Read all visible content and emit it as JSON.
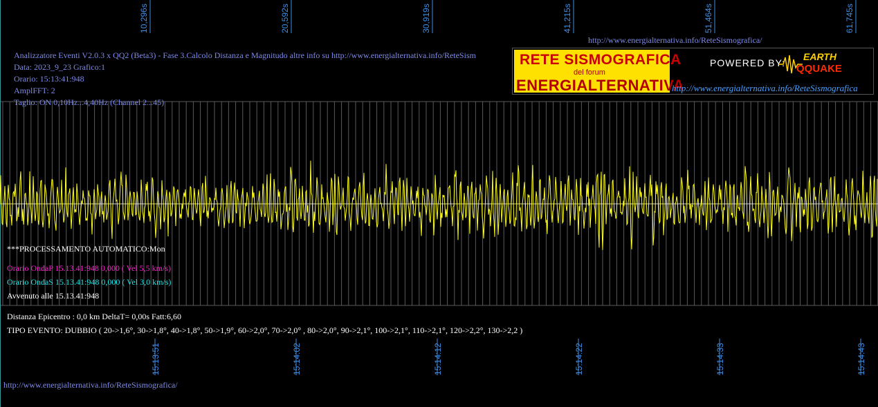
{
  "top_ticks": [
    "10,296s",
    "20,592s",
    "30,919s",
    "41,215s",
    "51,464s",
    "61,745s"
  ],
  "bottom_ticks": [
    "15:13:51",
    "15:14:02",
    "15:14:12",
    "15:14:22",
    "15:14:33",
    "15:14:43"
  ],
  "top_url": "http://www.energialternativa.info/ReteSismografica/",
  "header": {
    "line1": "Analizzatore Eventi V2.0.3 x QQ2 (Beta3) - Fase 3.Calcolo Distanza e Magnitudo altre info su http://www.energialternativa.info/ReteSism",
    "line2": "Data: 2023_9_23 Grafico:1",
    "line3": "Orario: 15:13:41:948",
    "line4": "AmplFFT: 2",
    "line5": "Taglio: ON 0,10Hz...4,40Hz       (Channel 2...45)"
  },
  "logo": {
    "rete": "RETE SISMOGRAFICA",
    "del_forum": "del forum",
    "energia": "ENERGIALTERNATIVA",
    "powered": "POWERED BY:",
    "earth": "EARTH",
    "qquake": "QQUAKE",
    "url": "http://www.energialternativa.info/ReteSismografica"
  },
  "status": {
    "processing": "***PROCESSAMENTO AUTOMATICO:Mon",
    "onda_p": "Orario OndaP 15.13.41:948  0,000 ( Vel 5,5 km/s)",
    "onda_s": "Orario OndaS 15.13.41:948  0,000 ( Vel 3,0 km/s)",
    "avvenuto": "Avvenuto alle 15.13.41:948",
    "distanza": "Distanza Epicentro : 0,0 km DeltaT= 0,00s  Fatt:6,60",
    "tipo": "TIPO EVENTO: DUBBIO ( 20->1,6°, 30->1,8°, 40->1,8°, 50->1,9°, 60->2,0°, 70->2,0° , 80->2,0°, 90->2,1°, 100->2,1°, 110->2,1°, 120->2,2°, 130->2,2 )"
  },
  "footer_url": "http://www.energialternativa.info/ReteSismografica/",
  "colors": {
    "trace": "#ffff1e",
    "grid": "#5a5a5a",
    "tick_text": "#3f8fe6",
    "info_text": "#7f8be8",
    "onda_p": "#ff1fd0",
    "onda_s": "#1fe6e6"
  },
  "chart_data": {
    "type": "line",
    "title": "",
    "xlabel": "",
    "ylabel": "",
    "x_range_s": [
      0,
      64.5
    ],
    "series": [
      {
        "values": [
          0.8,
          -0.4,
          0.5,
          -0.7,
          0.3,
          0.6,
          -0.5,
          0.2,
          -0.6,
          0.4,
          0.5,
          -0.3,
          0.2,
          -0.4,
          0.3,
          0.1,
          -0.5,
          0.4,
          0.3,
          -0.2,
          0.2,
          -0.3,
          0.6,
          0.5,
          -0.4,
          0.3,
          0.2,
          -0.1,
          0.3,
          -0.5,
          0.1,
          -0.3,
          0.2,
          0.1,
          -0.2,
          0.3,
          0.2,
          -0.3,
          0.5,
          0.3,
          -0.4,
          0.6,
          0.4,
          -0.3,
          0.7,
          0.5,
          -0.4,
          0.3,
          0.6,
          -0.2,
          0.5,
          -0.3,
          0.4,
          0.2,
          -0.3,
          0.6,
          -0.5,
          0.4,
          0.3,
          -0.4,
          0.5,
          -0.2,
          0.4,
          0.2,
          -0.3,
          0.6,
          0.5,
          -0.4,
          0.3,
          -0.6,
          0.5,
          0.7,
          -0.6,
          0.4,
          0.5,
          -0.3,
          0.6,
          0.3,
          -0.5,
          0.4,
          0.2,
          -0.4,
          0.5,
          0.3,
          -0.5,
          0.6,
          0.7,
          -0.6,
          0.4,
          -0.7,
          1.0,
          -0.8,
          0.5,
          -0.9,
          0.4,
          0.6,
          -0.5,
          0.3,
          0.5,
          -0.4,
          0.3,
          0.6,
          -0.3,
          0.4,
          0.2,
          -0.4,
          0.6,
          0.4,
          -0.5,
          0.3,
          0.5,
          -0.2,
          0.4,
          0.6,
          -0.4,
          0.3,
          0.5,
          -0.3,
          0.4,
          0.2,
          -0.3,
          0.5,
          0.3,
          -0.4,
          0.6,
          0.5
        ]
      }
    ]
  }
}
